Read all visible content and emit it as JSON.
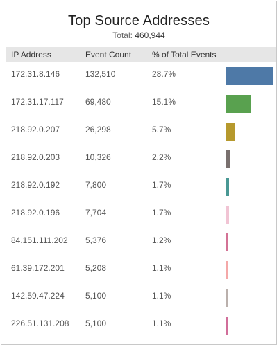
{
  "header": {
    "title": "Top Source Addresses",
    "total_label": "Total:",
    "total_value": "460,944"
  },
  "columns": {
    "ip": "IP Address",
    "count": "Event Count",
    "pct": "% of Total Events"
  },
  "rows": [
    {
      "ip": "172.31.8.146",
      "count": "132,510",
      "pct": "28.7%",
      "value": 132510,
      "color": "#4e79a7"
    },
    {
      "ip": "172.31.17.117",
      "count": "69,480",
      "pct": "15.1%",
      "value": 69480,
      "color": "#59a14f"
    },
    {
      "ip": "218.92.0.207",
      "count": "26,298",
      "pct": "5.7%",
      "value": 26298,
      "color": "#b6992d"
    },
    {
      "ip": "218.92.0.203",
      "count": "10,326",
      "pct": "2.2%",
      "value": 10326,
      "color": "#79706e"
    },
    {
      "ip": "218.92.0.192",
      "count": "7,800",
      "pct": "1.7%",
      "value": 7800,
      "color": "#499894"
    },
    {
      "ip": "218.92.0.196",
      "count": "7,704",
      "pct": "1.7%",
      "value": 7704,
      "color": "#f1c4d4"
    },
    {
      "ip": "84.151.111.202",
      "count": "5,376",
      "pct": "1.2%",
      "value": 5376,
      "color": "#d37295"
    },
    {
      "ip": "61.39.172.201",
      "count": "5,208",
      "pct": "1.1%",
      "value": 5208,
      "color": "#f4a8a8"
    },
    {
      "ip": "142.59.47.224",
      "count": "5,100",
      "pct": "1.1%",
      "value": 5100,
      "color": "#bab0ac"
    },
    {
      "ip": "226.51.131.208",
      "count": "5,100",
      "pct": "1.1%",
      "value": 5100,
      "color": "#d16e9a"
    }
  ]
}
